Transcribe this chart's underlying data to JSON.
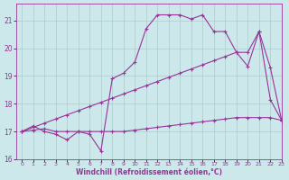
{
  "background_color": "#cce8ea",
  "grid_color": "#aacccc",
  "line_color": "#993399",
  "xlim": [
    -0.5,
    23
  ],
  "ylim": [
    16,
    21.6
  ],
  "yticks": [
    16,
    17,
    18,
    19,
    20,
    21
  ],
  "xticks": [
    0,
    1,
    2,
    3,
    4,
    5,
    6,
    7,
    8,
    9,
    10,
    11,
    12,
    13,
    14,
    15,
    16,
    17,
    18,
    19,
    20,
    21,
    22,
    23
  ],
  "xlabel": "Windchill (Refroidissement éolien,°C)",
  "series1_x": [
    0,
    1,
    2,
    3,
    4,
    5,
    6,
    7,
    8,
    9,
    10,
    11,
    12,
    13,
    14,
    15,
    16,
    17,
    18,
    19,
    20,
    21,
    22,
    23
  ],
  "series1_y": [
    17.0,
    17.2,
    17.0,
    16.9,
    16.7,
    17.0,
    16.9,
    16.3,
    18.9,
    19.1,
    19.5,
    20.7,
    21.2,
    21.2,
    21.2,
    21.05,
    21.2,
    20.6,
    20.6,
    19.85,
    19.35,
    20.6,
    18.15,
    17.4
  ],
  "series2_x": [
    0,
    1,
    2,
    3,
    4,
    5,
    6,
    7,
    8,
    9,
    10,
    11,
    12,
    13,
    14,
    15,
    16,
    17,
    18,
    19,
    20,
    21,
    22,
    23
  ],
  "series2_y": [
    17.0,
    17.15,
    17.3,
    17.45,
    17.6,
    17.75,
    17.9,
    18.05,
    18.2,
    18.35,
    18.5,
    18.65,
    18.8,
    18.95,
    19.1,
    19.25,
    19.4,
    19.55,
    19.7,
    19.85,
    19.85,
    20.6,
    19.3,
    17.4
  ],
  "series3_x": [
    0,
    1,
    2,
    3,
    4,
    5,
    6,
    7,
    8,
    9,
    10,
    11,
    12,
    13,
    14,
    15,
    16,
    17,
    18,
    19,
    20,
    21,
    22,
    23
  ],
  "series3_y": [
    17.0,
    17.05,
    17.1,
    17.0,
    17.0,
    17.0,
    17.0,
    17.0,
    17.0,
    17.0,
    17.05,
    17.1,
    17.15,
    17.2,
    17.25,
    17.3,
    17.35,
    17.4,
    17.45,
    17.5,
    17.5,
    17.5,
    17.5,
    17.4
  ]
}
